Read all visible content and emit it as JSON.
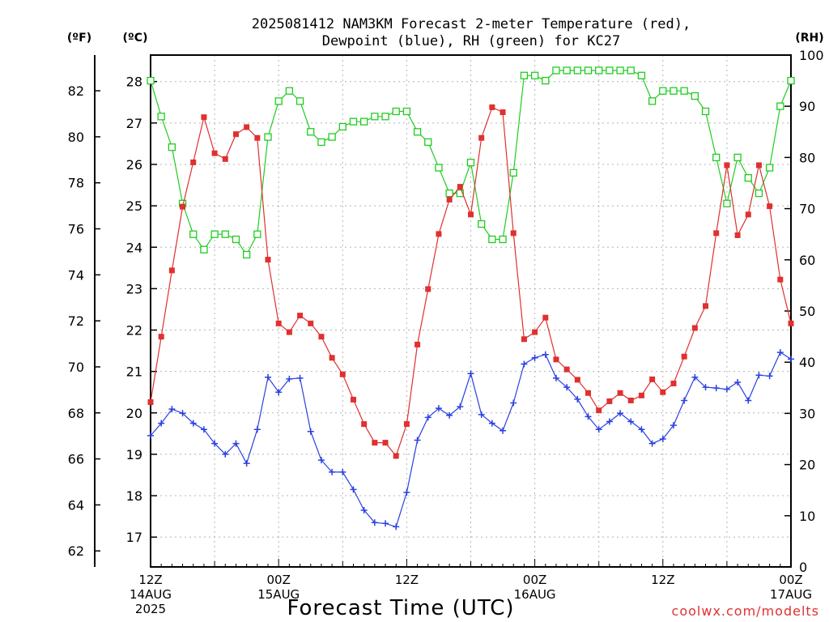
{
  "chart_data": {
    "type": "line",
    "title_line1": "2025081412 NAM3KM Forecast 2-meter Temperature (red),",
    "title_line2": "Dewpoint (blue), RH (green) for KC27",
    "xlabel": "Forecast Time (UTC)",
    "credit": "coolwx.com/modelts",
    "axis_units": {
      "fahrenheit": "(ºF)",
      "celsius": "(ºC)",
      "rh": "(RH)"
    },
    "x_ticks": [
      {
        "hour": 0,
        "time": "12Z",
        "date": "14AUG",
        "year": "2025"
      },
      {
        "hour": 12,
        "time": "00Z",
        "date": "15AUG",
        "year": ""
      },
      {
        "hour": 24,
        "time": "12Z",
        "date": "",
        "year": ""
      },
      {
        "hour": 36,
        "time": "00Z",
        "date": "16AUG",
        "year": ""
      },
      {
        "hour": 48,
        "time": "12Z",
        "date": "",
        "year": ""
      },
      {
        "hour": 60,
        "time": "00Z",
        "date": "17AUG",
        "year": ""
      }
    ],
    "celsius_ticks": [
      17,
      18,
      19,
      20,
      21,
      22,
      23,
      24,
      25,
      26,
      27,
      28
    ],
    "fahrenheit_ticks": [
      62,
      64,
      66,
      68,
      70,
      72,
      74,
      76,
      78,
      80,
      82
    ],
    "rh_ticks": [
      0,
      10,
      20,
      30,
      40,
      50,
      60,
      70,
      80,
      90,
      100
    ],
    "celsius_range": [
      16.28,
      28.64
    ],
    "rh_range": [
      0,
      100
    ],
    "x_range_hours": [
      0,
      60
    ],
    "grid": true,
    "series": [
      {
        "name": "Temperature",
        "unit": "°C",
        "color": "#e03030",
        "marker": "filled-square",
        "values": [
          20.26,
          21.84,
          23.44,
          24.98,
          26.05,
          27.14,
          26.27,
          26.13,
          26.73,
          26.9,
          26.64,
          23.7,
          22.16,
          21.95,
          22.35,
          22.16,
          21.84,
          21.33,
          20.93,
          20.32,
          19.73,
          19.28,
          19.28,
          18.96,
          19.73,
          21.65,
          22.99,
          24.32,
          25.15,
          25.46,
          24.79,
          26.64,
          27.38,
          27.26,
          24.34,
          21.78,
          21.95,
          22.3,
          21.29,
          21.05,
          20.8,
          20.48,
          20.06,
          20.28,
          20.48,
          20.3,
          20.42,
          20.81,
          20.5,
          20.71,
          21.36,
          22.05,
          22.58,
          24.34,
          25.98,
          24.29,
          24.79,
          25.98,
          24.99,
          23.22,
          22.16
        ]
      },
      {
        "name": "Dewpoint",
        "unit": "°C",
        "color": "#2a40e0",
        "marker": "plus",
        "values": [
          19.45,
          19.75,
          20.09,
          19.99,
          19.75,
          19.6,
          19.26,
          19.0,
          19.26,
          18.78,
          19.6,
          20.86,
          20.5,
          20.82,
          20.84,
          19.55,
          18.86,
          18.57,
          18.57,
          18.15,
          17.65,
          17.35,
          17.33,
          17.25,
          18.08,
          19.34,
          19.89,
          20.11,
          19.94,
          20.15,
          20.95,
          19.96,
          19.75,
          19.57,
          20.24,
          21.18,
          21.33,
          21.41,
          20.84,
          20.62,
          20.33,
          19.91,
          19.6,
          19.79,
          19.99,
          19.79,
          19.6,
          19.26,
          19.37,
          19.7,
          20.3,
          20.86,
          20.62,
          20.6,
          20.57,
          20.74,
          20.3,
          20.91,
          20.89,
          21.46,
          21.3
        ]
      },
      {
        "name": "RH",
        "unit": "%",
        "color": "#20cc20",
        "marker": "open-square",
        "values": [
          95,
          88,
          82,
          71,
          65,
          62,
          65,
          65,
          64,
          61,
          65,
          84,
          91,
          93,
          91,
          85,
          83,
          84,
          86,
          87,
          87,
          88,
          88,
          89,
          89,
          85,
          83,
          78,
          73,
          73,
          79,
          67,
          64,
          64,
          77,
          96,
          96,
          95,
          97,
          97,
          97,
          97,
          97,
          97,
          97,
          97,
          96,
          91,
          93,
          93,
          93,
          92,
          89,
          80,
          71,
          80,
          76,
          73,
          78,
          90,
          95
        ]
      }
    ]
  }
}
